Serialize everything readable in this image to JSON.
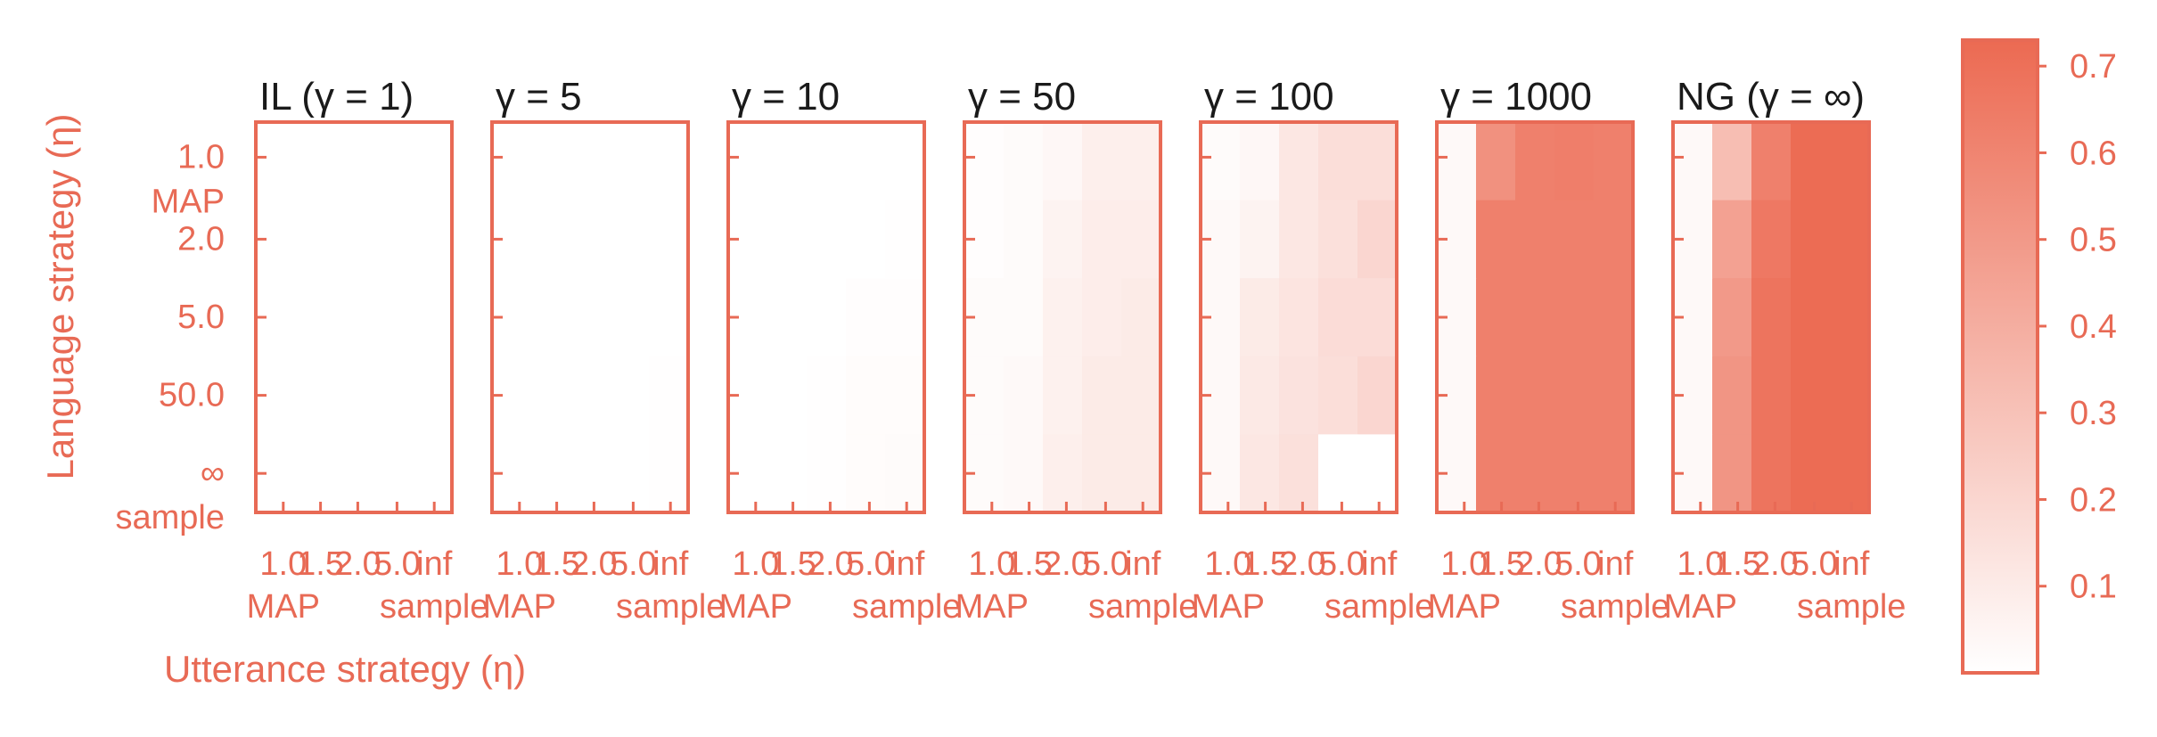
{
  "colors": {
    "accent": "#e86a55",
    "title_text": "#1a1a1a",
    "background": "#ffffff",
    "cmap_low": "#ffffff",
    "cmap_high": "#ec6a52"
  },
  "chart_data": {
    "type": "heatmap",
    "xlabel": "Utterance strategy (η)",
    "ylabel": "Language strategy (η)",
    "x_ticks": [
      {
        "label": "1.0",
        "sub": "MAP"
      },
      {
        "label": "1.5",
        "sub": ""
      },
      {
        "label": "2.0",
        "sub": ""
      },
      {
        "label": "5.0",
        "sub": ""
      },
      {
        "label": "inf",
        "sub": "sample"
      }
    ],
    "y_ticks": [
      {
        "label": "1.0",
        "sub": "MAP"
      },
      {
        "label": "2.0",
        "sub": ""
      },
      {
        "label": "5.0",
        "sub": ""
      },
      {
        "label": "50.0",
        "sub": ""
      },
      {
        "label": "∞",
        "sub": "sample"
      }
    ],
    "colorbar": {
      "min": 0.0,
      "max": 0.73,
      "ticks": [
        "0.1",
        "0.2",
        "0.3",
        "0.4",
        "0.5",
        "0.6",
        "0.7"
      ]
    },
    "panels": [
      {
        "title": "IL (γ = 1)",
        "values": [
          [
            0,
            0,
            0,
            0,
            0
          ],
          [
            0,
            0,
            0,
            0,
            0
          ],
          [
            0,
            0,
            0,
            0,
            0
          ],
          [
            0,
            0,
            0,
            0,
            0
          ],
          [
            0,
            0,
            0,
            0,
            0
          ]
        ]
      },
      {
        "title": "γ = 5",
        "values": [
          [
            0,
            0,
            0,
            0,
            0
          ],
          [
            0,
            0,
            0,
            0,
            0
          ],
          [
            0,
            0,
            0,
            0,
            0
          ],
          [
            0,
            0,
            0,
            0,
            0.005
          ],
          [
            0,
            0,
            0,
            0,
            0.005
          ]
        ]
      },
      {
        "title": "γ = 10",
        "values": [
          [
            0,
            0,
            0,
            0,
            0
          ],
          [
            0,
            0,
            0,
            0,
            0.005
          ],
          [
            0,
            0,
            0,
            0.01,
            0.01
          ],
          [
            0,
            0,
            0.005,
            0.015,
            0.015
          ],
          [
            0,
            0,
            0.005,
            0.015,
            0.02
          ]
        ]
      },
      {
        "title": "γ = 50",
        "values": [
          [
            0.01,
            0.02,
            0.04,
            0.08,
            0.08
          ],
          [
            0.01,
            0.02,
            0.06,
            0.09,
            0.09
          ],
          [
            0.02,
            0.02,
            0.07,
            0.09,
            0.1
          ],
          [
            0.02,
            0.03,
            0.07,
            0.1,
            0.1
          ],
          [
            0.02,
            0.03,
            0.08,
            0.1,
            0.1
          ]
        ]
      },
      {
        "title": "γ = 100",
        "values": [
          [
            0.02,
            0.04,
            0.12,
            0.16,
            0.16
          ],
          [
            0.03,
            0.06,
            0.12,
            0.15,
            0.2
          ],
          [
            0.03,
            0.1,
            0.13,
            0.17,
            0.17
          ],
          [
            0.03,
            0.11,
            0.14,
            0.16,
            0.2
          ],
          [
            0.03,
            0.12,
            0.15,
            0.0,
            0.0
          ]
        ]
      },
      {
        "title": "γ = 1000",
        "values": [
          [
            0.03,
            0.54,
            0.62,
            0.63,
            0.62
          ],
          [
            0.03,
            0.62,
            0.62,
            0.62,
            0.62
          ],
          [
            0.03,
            0.62,
            0.62,
            0.62,
            0.62
          ],
          [
            0.03,
            0.62,
            0.62,
            0.62,
            0.62
          ],
          [
            0.03,
            0.62,
            0.62,
            0.62,
            0.62
          ]
        ]
      },
      {
        "title": "NG (γ = ∞)",
        "values": [
          [
            0.03,
            0.32,
            0.62,
            0.72,
            0.72
          ],
          [
            0.03,
            0.46,
            0.66,
            0.72,
            0.72
          ],
          [
            0.03,
            0.5,
            0.68,
            0.72,
            0.72
          ],
          [
            0.03,
            0.52,
            0.68,
            0.72,
            0.72
          ],
          [
            0.03,
            0.52,
            0.68,
            0.72,
            0.72
          ]
        ]
      }
    ]
  }
}
